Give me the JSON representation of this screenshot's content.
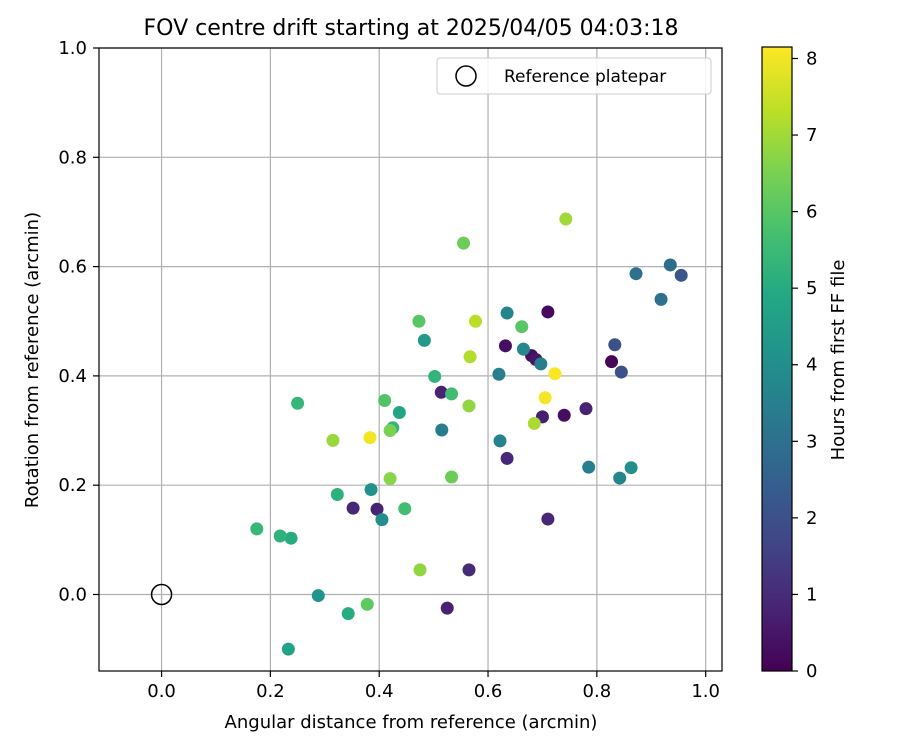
{
  "chart_data": {
    "type": "scatter",
    "title": "FOV centre drift starting at 2025/04/05 04:03:18",
    "xlabel": "Angular distance from reference (arcmin)",
    "ylabel": "Rotation from reference (arcmin)",
    "xlim": [
      -0.115,
      1.03
    ],
    "ylim": [
      -0.14,
      1.0
    ],
    "x_ticks": [
      0.0,
      0.2,
      0.4,
      0.6,
      0.8,
      1.0
    ],
    "x_tick_labels": [
      "0.0",
      "0.2",
      "0.4",
      "0.6",
      "0.8",
      "1.0"
    ],
    "y_ticks": [
      0.0,
      0.2,
      0.4,
      0.6,
      0.8,
      1.0
    ],
    "y_tick_labels": [
      "0.0",
      "0.2",
      "0.4",
      "0.6",
      "0.8",
      "1.0"
    ],
    "grid": true,
    "legend": {
      "placement": "top-right",
      "entries": [
        {
          "label": "Reference platepar",
          "marker": "open-circle"
        }
      ]
    },
    "reference_point": {
      "x": 0.0,
      "y": 0.0
    },
    "colorbar": {
      "label": "Hours from first FF file",
      "colormap": "viridis",
      "range": [
        0,
        8.15
      ],
      "ticks": [
        0,
        1,
        2,
        3,
        4,
        5,
        6,
        7,
        8
      ],
      "tick_labels": [
        "0",
        "1",
        "2",
        "3",
        "4",
        "5",
        "6",
        "7",
        "8"
      ]
    },
    "points": [
      {
        "x": 0.71,
        "y": 0.517,
        "c": 0.2
      },
      {
        "x": 0.632,
        "y": 0.455,
        "c": 0.3
      },
      {
        "x": 0.68,
        "y": 0.437,
        "c": 0.3
      },
      {
        "x": 0.688,
        "y": 0.43,
        "c": 0.5
      },
      {
        "x": 0.827,
        "y": 0.426,
        "c": 0.15
      },
      {
        "x": 0.74,
        "y": 0.328,
        "c": 0.3
      },
      {
        "x": 0.7,
        "y": 0.325,
        "c": 0.7
      },
      {
        "x": 0.78,
        "y": 0.34,
        "c": 0.8
      },
      {
        "x": 0.514,
        "y": 0.37,
        "c": 0.8
      },
      {
        "x": 0.635,
        "y": 0.249,
        "c": 0.9
      },
      {
        "x": 0.71,
        "y": 0.138,
        "c": 0.9
      },
      {
        "x": 0.352,
        "y": 0.158,
        "c": 0.9
      },
      {
        "x": 0.396,
        "y": 0.156,
        "c": 0.8
      },
      {
        "x": 0.565,
        "y": 0.045,
        "c": 1.0
      },
      {
        "x": 0.525,
        "y": -0.025,
        "c": 0.8
      },
      {
        "x": 0.833,
        "y": 0.457,
        "c": 2.0
      },
      {
        "x": 0.845,
        "y": 0.407,
        "c": 2.0
      },
      {
        "x": 0.955,
        "y": 0.584,
        "c": 2.2
      },
      {
        "x": 0.935,
        "y": 0.603,
        "c": 2.9
      },
      {
        "x": 0.872,
        "y": 0.587,
        "c": 3.0
      },
      {
        "x": 0.918,
        "y": 0.54,
        "c": 3.0
      },
      {
        "x": 0.635,
        "y": 0.515,
        "c": 3.7
      },
      {
        "x": 0.665,
        "y": 0.449,
        "c": 3.8
      },
      {
        "x": 0.697,
        "y": 0.422,
        "c": 3.5
      },
      {
        "x": 0.62,
        "y": 0.403,
        "c": 3.5
      },
      {
        "x": 0.515,
        "y": 0.301,
        "c": 3.4
      },
      {
        "x": 0.622,
        "y": 0.281,
        "c": 3.6
      },
      {
        "x": 0.785,
        "y": 0.233,
        "c": 3.5
      },
      {
        "x": 0.842,
        "y": 0.213,
        "c": 3.7
      },
      {
        "x": 0.863,
        "y": 0.232,
        "c": 4.0
      },
      {
        "x": 0.405,
        "y": 0.137,
        "c": 3.9
      },
      {
        "x": 0.385,
        "y": 0.192,
        "c": 4.1
      },
      {
        "x": 0.483,
        "y": 0.465,
        "c": 4.4
      },
      {
        "x": 0.437,
        "y": 0.333,
        "c": 4.8
      },
      {
        "x": 0.288,
        "y": -0.002,
        "c": 4.2
      },
      {
        "x": 0.233,
        "y": -0.1,
        "c": 4.7
      },
      {
        "x": 0.238,
        "y": 0.103,
        "c": 5.0
      },
      {
        "x": 0.218,
        "y": 0.107,
        "c": 5.2
      },
      {
        "x": 0.343,
        "y": -0.035,
        "c": 5.0
      },
      {
        "x": 0.323,
        "y": 0.183,
        "c": 5.2
      },
      {
        "x": 0.502,
        "y": 0.399,
        "c": 5.3
      },
      {
        "x": 0.425,
        "y": 0.305,
        "c": 5.3
      },
      {
        "x": 0.175,
        "y": 0.12,
        "c": 5.4
      },
      {
        "x": 0.25,
        "y": 0.35,
        "c": 5.4
      },
      {
        "x": 0.533,
        "y": 0.367,
        "c": 5.6
      },
      {
        "x": 0.447,
        "y": 0.157,
        "c": 5.6
      },
      {
        "x": 0.41,
        "y": 0.355,
        "c": 5.9
      },
      {
        "x": 0.473,
        "y": 0.5,
        "c": 6.0
      },
      {
        "x": 0.662,
        "y": 0.49,
        "c": 6.0
      },
      {
        "x": 0.378,
        "y": -0.018,
        "c": 6.1
      },
      {
        "x": 0.533,
        "y": 0.215,
        "c": 6.3
      },
      {
        "x": 0.555,
        "y": 0.643,
        "c": 6.3
      },
      {
        "x": 0.42,
        "y": 0.3,
        "c": 6.5
      },
      {
        "x": 0.42,
        "y": 0.212,
        "c": 6.7
      },
      {
        "x": 0.475,
        "y": 0.045,
        "c": 6.8
      },
      {
        "x": 0.565,
        "y": 0.345,
        "c": 6.8
      },
      {
        "x": 0.315,
        "y": 0.282,
        "c": 6.9
      },
      {
        "x": 0.743,
        "y": 0.687,
        "c": 7.0
      },
      {
        "x": 0.567,
        "y": 0.435,
        "c": 7.2
      },
      {
        "x": 0.577,
        "y": 0.5,
        "c": 7.3
      },
      {
        "x": 0.685,
        "y": 0.313,
        "c": 7.1
      },
      {
        "x": 0.383,
        "y": 0.287,
        "c": 8.0
      },
      {
        "x": 0.705,
        "y": 0.36,
        "c": 8.05
      },
      {
        "x": 0.723,
        "y": 0.404,
        "c": 8.1
      }
    ]
  }
}
